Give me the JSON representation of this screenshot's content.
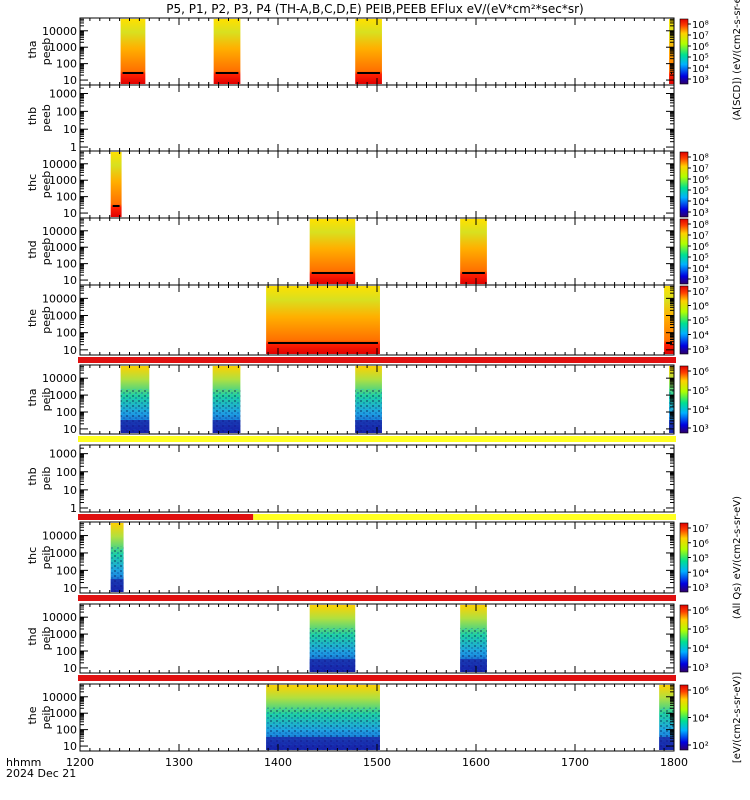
{
  "title": "P5, P1, P2, P3, P4 (TH-A,B,C,D,E) PEIB,PEEB EFlux eV/(eV*cm²*sec*sr)",
  "footer": {
    "line1": "hhmm",
    "line2": "2024 Dec 21"
  },
  "chart_data": {
    "type": "heatmap",
    "x_ticks": [
      1200,
      1300,
      1400,
      1500,
      1600,
      1700,
      1800
    ],
    "xlim": [
      1200,
      1800
    ],
    "y_scale": "log",
    "panels": [
      {
        "id": "tha-peeb",
        "label": [
          "tha",
          "peeb"
        ],
        "y_ticks": [
          "10000",
          "1000",
          "100",
          "10"
        ],
        "ylim": [
          5,
          60000
        ],
        "cbar": {
          "ticks": [
            "10⁸",
            "10⁷",
            "10⁶",
            "10⁵",
            "10⁴",
            "10³"
          ],
          "label": "(A[SCD]) (eV/(cm2-s-sr-eV))"
        },
        "blocks": [
          [
            1241,
            1266,
            "electron"
          ],
          [
            1335,
            1362,
            "electron"
          ],
          [
            1478,
            1505,
            "electron"
          ],
          [
            1795,
            1800,
            "electron"
          ]
        ],
        "status": null
      },
      {
        "id": "thb-peeb",
        "label": [
          "thb",
          "peeb"
        ],
        "y_ticks": [
          "1000",
          "100",
          "10",
          "1"
        ],
        "ylim": [
          0.6,
          3000
        ],
        "cbar": null,
        "blocks": [],
        "status": null
      },
      {
        "id": "thc-peeb",
        "label": [
          "thc",
          "peeb"
        ],
        "y_ticks": [
          "10000",
          "1000",
          "100",
          "10"
        ],
        "ylim": [
          5,
          60000
        ],
        "cbar": {
          "ticks": [
            "10⁸",
            "10⁷",
            "10⁶",
            "10⁵",
            "10⁴",
            "10³"
          ],
          "label": ""
        },
        "blocks": [
          [
            1231,
            1242,
            "electron"
          ]
        ],
        "status": null
      },
      {
        "id": "thd-peeb",
        "label": [
          "thd",
          "peeb"
        ],
        "y_ticks": [
          "10000",
          "1000",
          "100",
          "10"
        ],
        "ylim": [
          5,
          60000
        ],
        "cbar": {
          "ticks": [
            "10⁸",
            "10⁷",
            "10⁶",
            "10⁵",
            "10⁴",
            "10³"
          ],
          "label": ""
        },
        "blocks": [
          [
            1432,
            1478,
            "electron"
          ],
          [
            1584,
            1611,
            "electron"
          ]
        ],
        "status": null
      },
      {
        "id": "the-peeb",
        "label": [
          "the",
          "peeb"
        ],
        "y_ticks": [
          "10000",
          "1000",
          "100",
          "10"
        ],
        "ylim": [
          5,
          60000
        ],
        "cbar": {
          "ticks": [
            "10⁷",
            "10⁶",
            "10⁵",
            "10⁴",
            "10³"
          ],
          "label": ""
        },
        "blocks": [
          [
            1388,
            1503,
            "electron"
          ],
          [
            1790,
            1800,
            "electron"
          ]
        ],
        "status": "red"
      },
      {
        "id": "tha-peib",
        "label": [
          "tha",
          "peib"
        ],
        "y_ticks": [
          "10000",
          "1000",
          "100",
          "10"
        ],
        "ylim": [
          5,
          60000
        ],
        "cbar": {
          "ticks": [
            "10⁶",
            "10⁵",
            "10⁴",
            "10³"
          ],
          "label": ""
        },
        "blocks": [
          [
            1241,
            1270,
            "ion"
          ],
          [
            1334,
            1362,
            "ion"
          ],
          [
            1478,
            1505,
            "ion"
          ],
          [
            1795,
            1800,
            "ion"
          ]
        ],
        "status": "yellow"
      },
      {
        "id": "thb-peib",
        "label": [
          "thb",
          "peib"
        ],
        "y_ticks": [
          "1000",
          "100",
          "10",
          "1"
        ],
        "ylim": [
          0.6,
          3000
        ],
        "cbar": null,
        "blocks": [],
        "status": "split"
      },
      {
        "id": "thc-peib",
        "label": [
          "thc",
          "peib"
        ],
        "y_ticks": [
          "10000",
          "1000",
          "100",
          "10"
        ],
        "ylim": [
          5,
          60000
        ],
        "cbar": {
          "ticks": [
            "10⁷",
            "10⁶",
            "10⁵",
            "10⁴",
            "10³"
          ],
          "label": "(All Qs) eV/(cm2-s-sr-eV)"
        },
        "blocks": [
          [
            1231,
            1244,
            "ion"
          ]
        ],
        "status": "red"
      },
      {
        "id": "thd-peib",
        "label": [
          "thd",
          "peib"
        ],
        "y_ticks": [
          "10000",
          "1000",
          "100",
          "10"
        ],
        "ylim": [
          5,
          60000
        ],
        "cbar": {
          "ticks": [
            "10⁶",
            "10⁵",
            "10⁴",
            "10³"
          ],
          "label": ""
        },
        "blocks": [
          [
            1432,
            1478,
            "ion"
          ],
          [
            1584,
            1611,
            "ion"
          ]
        ],
        "status": "red"
      },
      {
        "id": "the-peib",
        "label": [
          "the",
          "peib"
        ],
        "y_ticks": [
          "10000",
          "1000",
          "100",
          "10"
        ],
        "ylim": [
          5,
          60000
        ],
        "cbar": {
          "ticks": [
            "10⁶",
            "10⁴",
            "10²"
          ],
          "label": "[eV/(cm2-s-sr-eV)]"
        },
        "blocks": [
          [
            1388,
            1503,
            "ion"
          ],
          [
            1785,
            1800,
            "ion"
          ]
        ],
        "status": null
      }
    ]
  }
}
